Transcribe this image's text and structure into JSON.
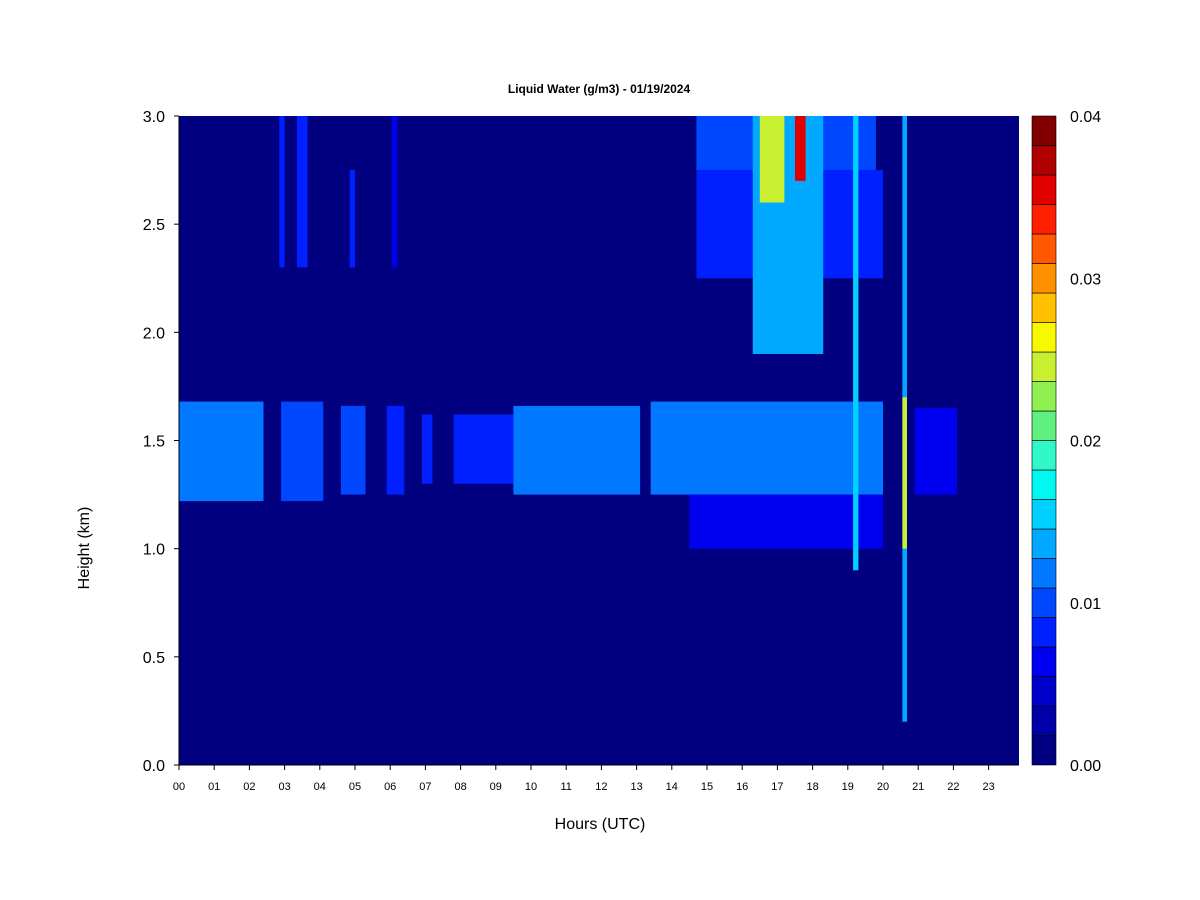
{
  "chart_data": {
    "type": "heatmap",
    "title": "Liquid Water (g/m3) - 01/19/2024",
    "xlabel": "Hours (UTC)",
    "ylabel": "Height (km)",
    "xlim": [
      0,
      24
    ],
    "ylim": [
      0,
      3
    ],
    "x_ticks": [
      "00",
      "01",
      "02",
      "03",
      "04",
      "05",
      "06",
      "07",
      "08",
      "09",
      "10",
      "11",
      "12",
      "13",
      "14",
      "15",
      "16",
      "17",
      "18",
      "19",
      "20",
      "21",
      "22",
      "23"
    ],
    "y_ticks": [
      "0.0",
      "0.5",
      "1.0",
      "1.5",
      "2.0",
      "2.5",
      "3.0"
    ],
    "colorbar": {
      "range": [
        0,
        0.04
      ],
      "tick_labels": [
        "0.00",
        "0.01",
        "0.02",
        "0.03",
        "0.04"
      ],
      "tick_values": [
        0,
        0.01,
        0.02,
        0.03,
        0.04
      ],
      "colors": [
        "#000080",
        "#0000a8",
        "#0000cc",
        "#0000f0",
        "#0020ff",
        "#0048ff",
        "#0078ff",
        "#00a8ff",
        "#00d0ff",
        "#00f8f0",
        "#30f8c8",
        "#60f080",
        "#90f050",
        "#c8f030",
        "#f8f800",
        "#ffc000",
        "#ff9000",
        "#ff5800",
        "#ff2000",
        "#e00000",
        "#b00000",
        "#800000"
      ]
    },
    "features": [
      {
        "x0": 0.0,
        "x1": 2.4,
        "y0": 1.22,
        "y1": 1.68,
        "value": 0.011
      },
      {
        "x0": 2.9,
        "x1": 4.1,
        "y0": 1.22,
        "y1": 1.68,
        "value": 0.01
      },
      {
        "x0": 4.6,
        "x1": 5.3,
        "y0": 1.25,
        "y1": 1.66,
        "value": 0.01
      },
      {
        "x0": 5.9,
        "x1": 6.4,
        "y0": 1.25,
        "y1": 1.66,
        "value": 0.009
      },
      {
        "x0": 6.9,
        "x1": 7.2,
        "y0": 1.3,
        "y1": 1.62,
        "value": 0.008
      },
      {
        "x0": 7.8,
        "x1": 9.5,
        "y0": 1.3,
        "y1": 1.62,
        "value": 0.009
      },
      {
        "x0": 9.5,
        "x1": 13.1,
        "y0": 1.25,
        "y1": 1.66,
        "value": 0.011
      },
      {
        "x0": 13.4,
        "x1": 20.0,
        "y0": 1.25,
        "y1": 1.68,
        "value": 0.012
      },
      {
        "x0": 14.5,
        "x1": 20.0,
        "y0": 1.0,
        "y1": 1.25,
        "value": 0.006
      },
      {
        "x0": 14.7,
        "x1": 20.0,
        "y0": 2.25,
        "y1": 2.75,
        "value": 0.008
      },
      {
        "x0": 14.7,
        "x1": 19.8,
        "y0": 2.75,
        "y1": 3.0,
        "value": 0.01
      },
      {
        "x0": 16.3,
        "x1": 18.3,
        "y0": 1.9,
        "y1": 3.0,
        "value": 0.013
      },
      {
        "x0": 16.5,
        "x1": 17.2,
        "y0": 2.6,
        "y1": 3.0,
        "value": 0.024
      },
      {
        "x0": 17.5,
        "x1": 17.8,
        "y0": 2.7,
        "y1": 3.0,
        "value": 0.035
      },
      {
        "x0": 2.85,
        "x1": 3.0,
        "y0": 2.3,
        "y1": 3.0,
        "value": 0.008
      },
      {
        "x0": 3.35,
        "x1": 3.65,
        "y0": 2.3,
        "y1": 3.0,
        "value": 0.009
      },
      {
        "x0": 4.85,
        "x1": 5.0,
        "y0": 2.3,
        "y1": 2.75,
        "value": 0.008
      },
      {
        "x0": 6.05,
        "x1": 6.2,
        "y0": 2.3,
        "y1": 3.0,
        "value": 0.007
      },
      {
        "x0": 19.15,
        "x1": 19.3,
        "y0": 0.9,
        "y1": 3.0,
        "value": 0.016
      },
      {
        "x0": 20.55,
        "x1": 20.68,
        "y0": 0.2,
        "y1": 3.0,
        "value": 0.014
      },
      {
        "x0": 20.55,
        "x1": 20.68,
        "y0": 1.0,
        "y1": 1.7,
        "value": 0.024
      },
      {
        "x0": 20.9,
        "x1": 22.1,
        "y0": 1.25,
        "y1": 1.65,
        "value": 0.007
      }
    ]
  }
}
